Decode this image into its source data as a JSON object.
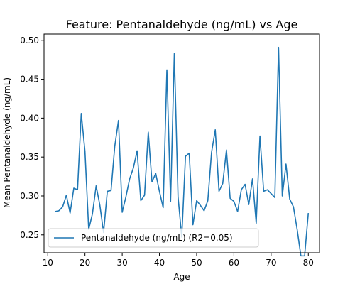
{
  "chart_data": {
    "type": "line",
    "title": "Feature: Pentanaldehyde (ng/mL) vs Age",
    "xlabel": "Age",
    "ylabel": "Mean Pentanaldehyde (ng/mL)",
    "xlim": [
      9,
      83
    ],
    "ylim": [
      0.227,
      0.508
    ],
    "xticks": [
      10,
      20,
      30,
      40,
      50,
      60,
      70,
      80
    ],
    "yticks": [
      0.25,
      0.3,
      0.35,
      0.4,
      0.45,
      0.5
    ],
    "ytick_labels": [
      "0.25",
      "0.30",
      "0.35",
      "0.40",
      "0.45",
      "0.50"
    ],
    "grid": false,
    "legend_position": "lower-left",
    "series": [
      {
        "name": "Pentanaldehyde (ng/mL) (R2=0.05)",
        "color": "#1f77b4",
        "x": [
          12,
          13,
          14,
          15,
          16,
          17,
          18,
          19,
          20,
          21,
          22,
          23,
          24,
          25,
          26,
          27,
          28,
          29,
          30,
          31,
          32,
          33,
          34,
          35,
          36,
          37,
          38,
          39,
          40,
          41,
          42,
          43,
          44,
          45,
          46,
          47,
          48,
          49,
          50,
          51,
          52,
          53,
          54,
          55,
          56,
          57,
          58,
          59,
          60,
          61,
          62,
          63,
          64,
          65,
          66,
          67,
          68,
          69,
          70,
          71,
          72,
          73,
          74,
          75,
          76,
          77,
          78,
          79,
          80
        ],
        "y": [
          0.28,
          0.281,
          0.286,
          0.301,
          0.278,
          0.31,
          0.308,
          0.406,
          0.357,
          0.257,
          0.277,
          0.313,
          0.288,
          0.253,
          0.306,
          0.307,
          0.364,
          0.397,
          0.279,
          0.299,
          0.322,
          0.336,
          0.358,
          0.294,
          0.301,
          0.382,
          0.318,
          0.329,
          0.306,
          0.285,
          0.462,
          0.293,
          0.483,
          0.299,
          0.247,
          0.351,
          0.355,
          0.263,
          0.294,
          0.288,
          0.281,
          0.294,
          0.356,
          0.385,
          0.306,
          0.316,
          0.359,
          0.297,
          0.293,
          0.28,
          0.308,
          0.315,
          0.289,
          0.322,
          0.265,
          0.377,
          0.306,
          0.308,
          0.303,
          0.298,
          0.491,
          0.3,
          0.341,
          0.296,
          0.286,
          0.257,
          0.223,
          0.223,
          0.278
        ]
      }
    ]
  }
}
